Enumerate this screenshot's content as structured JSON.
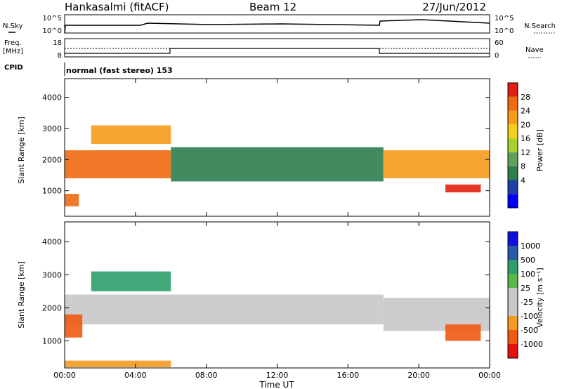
{
  "header": {
    "station": "Hankasalmi (fitACF)",
    "beam": "Beam 12",
    "date": "27/Jun/2012"
  },
  "noise_panel": {
    "left_label": "N.Sky",
    "right_label": "N.Search",
    "left_ticks": [
      "10^5",
      "10^0"
    ],
    "right_ticks": [
      "10^5",
      "10^0"
    ]
  },
  "freq_panel": {
    "left_label_line1": "Freq.",
    "left_label_line2": "[MHz]",
    "left_ticks": [
      "18",
      "8"
    ],
    "right_label": "Nave",
    "right_ticks": [
      "60",
      "0"
    ]
  },
  "cpid_panel": {
    "label": "CPID",
    "text": "normal (fast stereo) 153"
  },
  "colors": {
    "power": [
      "#0000ff",
      "#1f3fa8",
      "#2e7d4f",
      "#5fa35a",
      "#a8d02a",
      "#f2d01c",
      "#f59c1a",
      "#f06a12",
      "#e02010"
    ],
    "velocity": [
      "#e81010",
      "#f05a10",
      "#f59a20",
      "#c8c8c8",
      "#c8c8c8",
      "#58b848",
      "#2e9e6a",
      "#2a5aa8",
      "#1010e0"
    ]
  },
  "power_colorbar": {
    "label": "Power [dB]",
    "ticks": [
      "28",
      "24",
      "20",
      "16",
      "12",
      "8",
      "4"
    ]
  },
  "velocity_colorbar": {
    "label": "Velocity [m s⁻¹]",
    "ticks": [
      "1000",
      "500",
      "100",
      "25",
      "-25",
      "-100",
      "-500",
      "-1000"
    ]
  },
  "chart_data": [
    {
      "type": "heatmap",
      "ylabel": "Slant Range [km]",
      "xlabel": "Time UT",
      "xlim": [
        "00:00",
        "24:00"
      ],
      "ylim": [
        180,
        4600
      ],
      "yticks": [
        "1000",
        "2000",
        "3000",
        "4000"
      ],
      "xticks": [
        "00:00",
        "04:00",
        "08:00",
        "12:00",
        "16:00",
        "20:00",
        "00:00"
      ],
      "colorbar": "Power [dB]",
      "bands": [
        {
          "t_start": 0.0,
          "t_end": 6.0,
          "r_low": 1400,
          "r_high": 2300,
          "level": 7
        },
        {
          "t_start": 6.0,
          "t_end": 18.0,
          "r_low": 1300,
          "r_high": 2400,
          "level": 2
        },
        {
          "t_start": 18.0,
          "t_end": 24.0,
          "r_low": 1400,
          "r_high": 2300,
          "level": 6
        },
        {
          "t_start": 1.5,
          "t_end": 6.0,
          "r_low": 2500,
          "r_high": 3100,
          "level": 6
        },
        {
          "t_start": 21.5,
          "t_end": 23.5,
          "r_low": 950,
          "r_high": 1200,
          "level": 8
        },
        {
          "t_start": 0.0,
          "t_end": 0.8,
          "r_low": 500,
          "r_high": 900,
          "level": 7
        }
      ]
    },
    {
      "type": "heatmap",
      "ylabel": "Slant Range [km]",
      "xlabel": "Time UT",
      "xlim": [
        "00:00",
        "24:00"
      ],
      "ylim": [
        180,
        4600
      ],
      "yticks": [
        "1000",
        "2000",
        "3000",
        "4000"
      ],
      "xticks": [
        "00:00",
        "04:00",
        "08:00",
        "12:00",
        "16:00",
        "20:00",
        "00:00"
      ],
      "colorbar": "Velocity [m s⁻¹]",
      "bands": [
        {
          "t_start": 0.0,
          "t_end": 18.0,
          "r_low": 1500,
          "r_high": 2400,
          "level": 3
        },
        {
          "t_start": 18.0,
          "t_end": 24.0,
          "r_low": 1300,
          "r_high": 2300,
          "level": 3
        },
        {
          "t_start": 1.5,
          "t_end": 6.0,
          "r_low": 2500,
          "r_high": 3100,
          "level": 6
        },
        {
          "t_start": 21.5,
          "t_end": 23.5,
          "r_low": 1000,
          "r_high": 1500,
          "level": 1
        },
        {
          "t_start": 0.0,
          "t_end": 1.0,
          "r_low": 1100,
          "r_high": 1800,
          "level": 1
        },
        {
          "t_start": 0.0,
          "t_end": 6.0,
          "r_low": 200,
          "r_high": 400,
          "level": 2
        }
      ]
    }
  ]
}
